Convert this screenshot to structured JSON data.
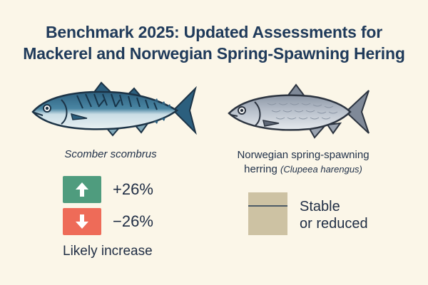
{
  "header": {
    "title_line1": "Benchmark 2025: Updated Assessments for",
    "title_line2": "Mackerel and Norwegian Spring-Spawning Hering"
  },
  "mackerel": {
    "icon": "mackerel-fish-icon",
    "scientific_name": "Scomber scombrus",
    "increase": {
      "icon": "arrow-up-icon",
      "color": "#4f9c7e",
      "value": "+26%"
    },
    "decrease": {
      "icon": "arrow-down-icon",
      "color": "#ee6b58",
      "value": "−26%"
    },
    "outlook": "Likely increase"
  },
  "herring": {
    "icon": "herring-fish-icon",
    "common_name": "Norwegian spring-spawning",
    "common_name_line2": "herring",
    "scientific_name": "(Clupeea harengus)",
    "status_color": "#cdc2a3",
    "status_line1": "Stable",
    "status_line2": "or reduced"
  }
}
